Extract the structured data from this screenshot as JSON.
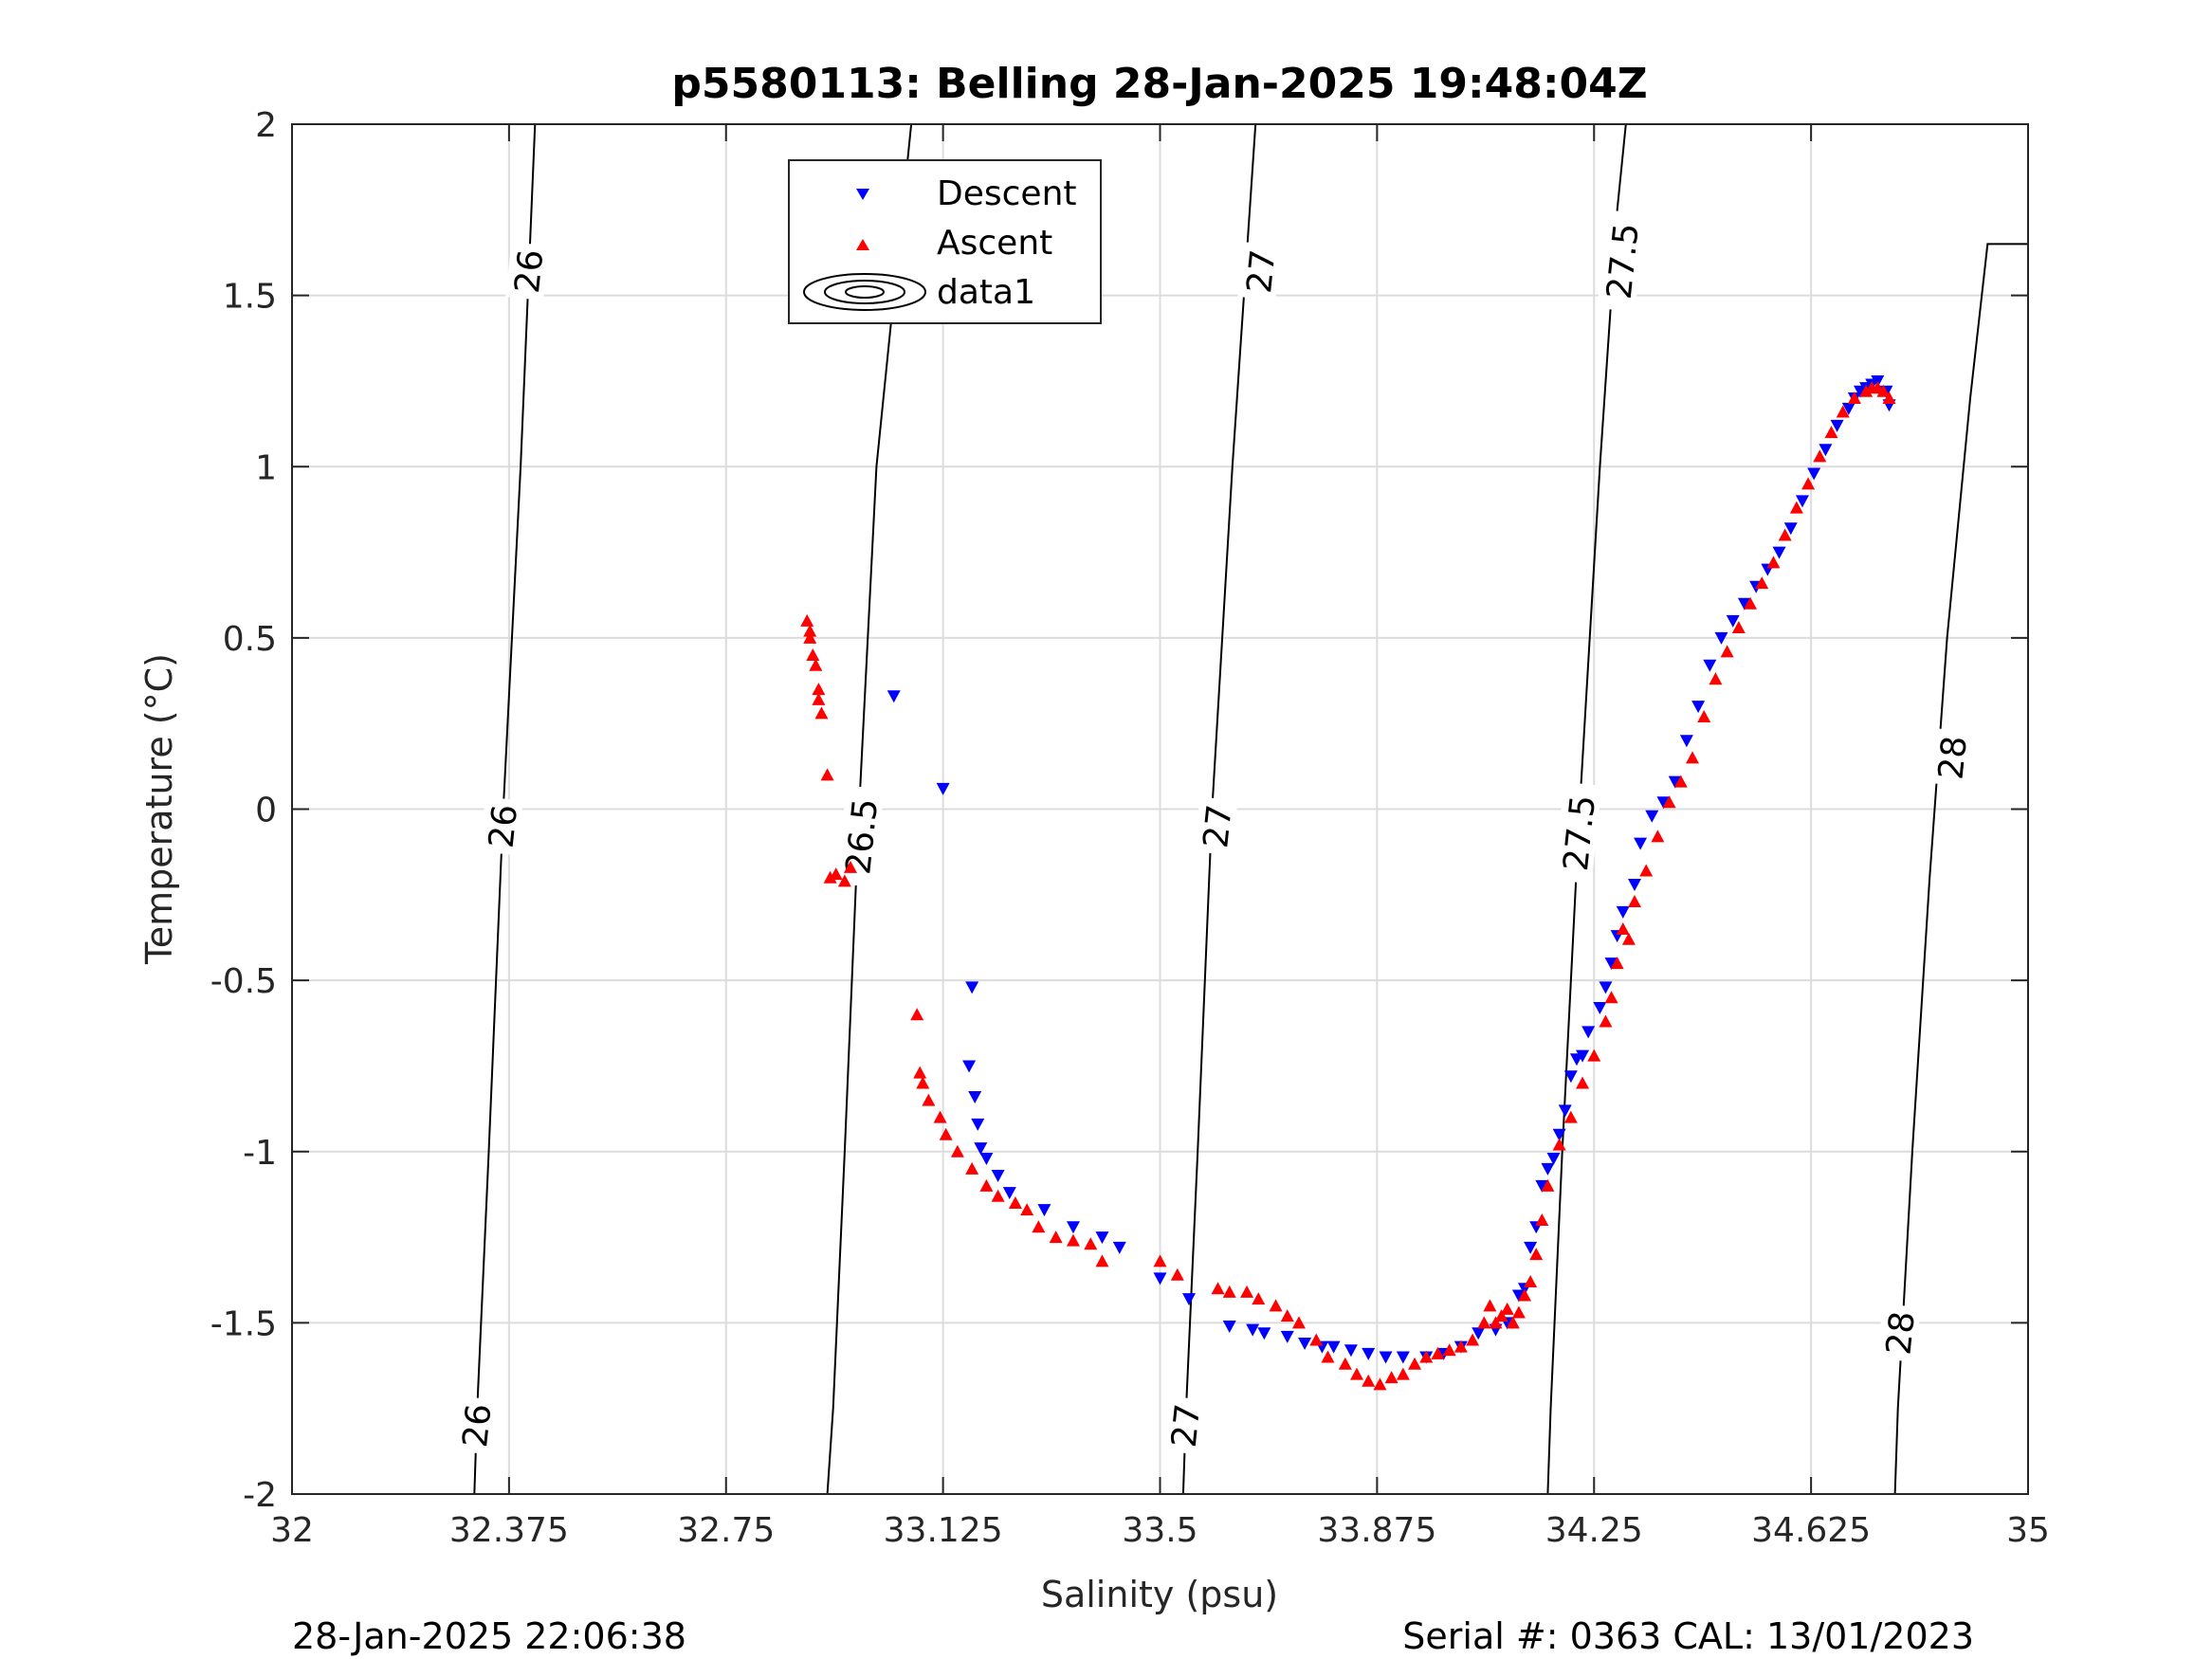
{
  "chart_data": {
    "type": "scatter",
    "title": "p5580113: Belling 28-Jan-2025 19:48:04Z",
    "xlabel": "Salinity (psu)",
    "ylabel": "Temperature (°C)",
    "xlim": [
      32,
      35
    ],
    "ylim": [
      -2,
      2
    ],
    "xticks": [
      32,
      32.375,
      32.75,
      33.125,
      33.5,
      33.875,
      34.25,
      34.625,
      35
    ],
    "xtick_labels": [
      "32",
      "32.375",
      "32.75",
      "33.125",
      "33.5",
      "33.875",
      "34.25",
      "34.625",
      "35"
    ],
    "yticks": [
      -2,
      -1.5,
      -1,
      -0.5,
      0,
      0.5,
      1,
      1.5,
      2
    ],
    "ytick_labels": [
      "-2",
      "-1.5",
      "-1",
      "-0.5",
      "0",
      "0.5",
      "1",
      "1.5",
      "2"
    ],
    "grid": true,
    "legend": {
      "placement": "top-center",
      "entries": [
        "Descent",
        "Ascent",
        "data1"
      ]
    },
    "contours": {
      "name": "data1",
      "lines": [
        {
          "level": "26",
          "points": [
            [
              32.315,
              -2
            ],
            [
              32.32,
              -1.75
            ],
            [
              32.34,
              -1.0
            ],
            [
              32.365,
              0
            ],
            [
              32.395,
              1.0
            ],
            [
              32.42,
              2
            ]
          ]
        },
        {
          "level": "26.5",
          "points": [
            [
              32.925,
              -2
            ],
            [
              32.935,
              -1.75
            ],
            [
              32.955,
              -1.0
            ],
            [
              32.98,
              0
            ],
            [
              33.01,
              1.0
            ],
            [
              33.04,
              1.5
            ],
            [
              33.04,
              1.5
            ],
            [
              33.07,
              2
            ]
          ]
        },
        {
          "level": "27",
          "points": [
            [
              33.54,
              -2
            ],
            [
              33.545,
              -1.75
            ],
            [
              33.565,
              -1.0
            ],
            [
              33.59,
              0
            ],
            [
              33.625,
              1.0
            ],
            [
              33.655,
              1.75
            ],
            [
              33.665,
              2
            ]
          ]
        },
        {
          "level": "27.5",
          "points": [
            [
              34.17,
              -2
            ],
            [
              34.175,
              -1.75
            ],
            [
              34.195,
              -1.0
            ],
            [
              34.225,
              0
            ],
            [
              34.26,
              1.0
            ],
            [
              34.29,
              1.75
            ],
            [
              34.305,
              2
            ]
          ]
        },
        {
          "level": "28",
          "points": [
            [
              34.77,
              -2
            ],
            [
              34.775,
              -1.75
            ],
            [
              34.8,
              -1.0
            ],
            [
              34.83,
              -0.2
            ],
            [
              34.86,
              0.5
            ],
            [
              34.9,
              1.2
            ],
            [
              34.93,
              1.65
            ],
            [
              35.0,
              1.65
            ]
          ]
        }
      ],
      "labels": [
        {
          "text": "26",
          "x": 32.32,
          "y": -1.8
        },
        {
          "text": "26",
          "x": 32.365,
          "y": -0.05
        },
        {
          "text": "26",
          "x": 32.41,
          "y": 1.57
        },
        {
          "text": "26.5",
          "x": 32.985,
          "y": -0.08
        },
        {
          "text": "26.5",
          "x": 33.06,
          "y": 1.6
        },
        {
          "text": "27",
          "x": 33.545,
          "y": -1.8
        },
        {
          "text": "27",
          "x": 33.6,
          "y": -0.05
        },
        {
          "text": "27",
          "x": 33.675,
          "y": 1.57
        },
        {
          "text": "27.5",
          "x": 34.225,
          "y": -0.07
        },
        {
          "text": "27.5",
          "x": 34.3,
          "y": 1.6
        },
        {
          "text": "28",
          "x": 34.78,
          "y": -1.53
        },
        {
          "text": "28",
          "x": 34.87,
          "y": 0.15
        }
      ]
    },
    "series": [
      {
        "name": "Descent",
        "marker": "triangle-down",
        "color": "#0000ff",
        "x": [
          33.04,
          33.125,
          33.175,
          33.17,
          33.18,
          33.185,
          33.19,
          33.2,
          33.22,
          33.24,
          33.3,
          33.35,
          33.4,
          33.43,
          33.5,
          33.55,
          33.62,
          33.66,
          33.68,
          33.72,
          33.75,
          33.78,
          33.8,
          33.83,
          33.86,
          33.89,
          33.92,
          33.96,
          33.99,
          34.02,
          34.05,
          34.08,
          34.1,
          34.12,
          34.13,
          34.14,
          34.15,
          34.16,
          34.17,
          34.18,
          34.19,
          34.2,
          34.21,
          34.22,
          34.23,
          34.24,
          34.26,
          34.27,
          34.28,
          34.29,
          34.3,
          34.32,
          34.33,
          34.35,
          34.37,
          34.39,
          34.41,
          34.43,
          34.45,
          34.47,
          34.49,
          34.51,
          34.53,
          34.55,
          34.57,
          34.59,
          34.61,
          34.63,
          34.65,
          34.67,
          34.69,
          34.7,
          34.71,
          34.72,
          34.73,
          34.74,
          34.755,
          34.76
        ],
        "y": [
          0.33,
          0.06,
          -0.52,
          -0.75,
          -0.84,
          -0.92,
          -0.99,
          -1.02,
          -1.07,
          -1.12,
          -1.17,
          -1.22,
          -1.25,
          -1.28,
          -1.37,
          -1.43,
          -1.51,
          -1.52,
          -1.53,
          -1.54,
          -1.56,
          -1.57,
          -1.57,
          -1.58,
          -1.59,
          -1.6,
          -1.6,
          -1.6,
          -1.59,
          -1.57,
          -1.53,
          -1.52,
          -1.5,
          -1.42,
          -1.4,
          -1.28,
          -1.22,
          -1.1,
          -1.05,
          -1.02,
          -0.95,
          -0.88,
          -0.78,
          -0.73,
          -0.72,
          -0.65,
          -0.58,
          -0.52,
          -0.45,
          -0.37,
          -0.3,
          -0.22,
          -0.1,
          -0.02,
          0.02,
          0.08,
          0.2,
          0.3,
          0.42,
          0.5,
          0.55,
          0.6,
          0.65,
          0.7,
          0.75,
          0.82,
          0.9,
          0.98,
          1.05,
          1.12,
          1.17,
          1.2,
          1.22,
          1.23,
          1.24,
          1.25,
          1.22,
          1.18
        ]
      },
      {
        "name": "Ascent",
        "marker": "triangle-up",
        "color": "#ff0000",
        "x": [
          32.89,
          32.895,
          32.9,
          32.895,
          32.905,
          32.91,
          32.915,
          32.91,
          32.925,
          32.93,
          32.94,
          32.955,
          32.965,
          33.08,
          33.085,
          33.09,
          33.1,
          33.12,
          33.13,
          33.15,
          33.175,
          33.2,
          33.22,
          33.25,
          33.27,
          33.29,
          33.32,
          33.35,
          33.38,
          33.4,
          33.5,
          33.53,
          33.6,
          33.62,
          33.65,
          33.67,
          33.7,
          33.72,
          33.74,
          33.77,
          33.79,
          33.82,
          33.84,
          33.86,
          33.88,
          33.9,
          33.92,
          33.94,
          33.96,
          33.98,
          34.0,
          34.02,
          34.04,
          34.06,
          34.07,
          34.08,
          34.09,
          34.1,
          34.11,
          34.12,
          34.13,
          34.14,
          34.15,
          34.16,
          34.17,
          34.19,
          34.21,
          34.23,
          34.25,
          34.27,
          34.28,
          34.29,
          34.3,
          34.31,
          34.32,
          34.34,
          34.36,
          34.38,
          34.4,
          34.42,
          34.44,
          34.46,
          34.48,
          34.5,
          34.52,
          34.54,
          34.56,
          34.58,
          34.6,
          34.62,
          34.64,
          34.66,
          34.68,
          34.7,
          34.72,
          34.73,
          34.74,
          34.75,
          34.76
        ],
        "y": [
          0.55,
          0.5,
          0.45,
          0.52,
          0.42,
          0.32,
          0.28,
          0.35,
          0.1,
          -0.2,
          -0.19,
          -0.21,
          -0.17,
          -0.6,
          -0.77,
          -0.8,
          -0.85,
          -0.9,
          -0.95,
          -1.0,
          -1.05,
          -1.1,
          -1.13,
          -1.15,
          -1.17,
          -1.22,
          -1.25,
          -1.26,
          -1.27,
          -1.32,
          -1.32,
          -1.36,
          -1.4,
          -1.41,
          -1.41,
          -1.43,
          -1.45,
          -1.48,
          -1.5,
          -1.55,
          -1.6,
          -1.62,
          -1.65,
          -1.67,
          -1.68,
          -1.66,
          -1.65,
          -1.62,
          -1.6,
          -1.59,
          -1.58,
          -1.57,
          -1.55,
          -1.5,
          -1.45,
          -1.5,
          -1.48,
          -1.46,
          -1.5,
          -1.47,
          -1.42,
          -1.38,
          -1.3,
          -1.2,
          -1.1,
          -0.98,
          -0.9,
          -0.8,
          -0.72,
          -0.62,
          -0.55,
          -0.45,
          -0.35,
          -0.38,
          -0.27,
          -0.18,
          -0.08,
          0.02,
          0.08,
          0.15,
          0.27,
          0.38,
          0.46,
          0.53,
          0.6,
          0.66,
          0.72,
          0.8,
          0.88,
          0.95,
          1.03,
          1.1,
          1.16,
          1.2,
          1.22,
          1.23,
          1.23,
          1.22,
          1.2
        ]
      }
    ]
  },
  "footer": {
    "left": "28-Jan-2025 22:06:38",
    "right": "Serial #: 0363  CAL: 13/01/2023"
  }
}
